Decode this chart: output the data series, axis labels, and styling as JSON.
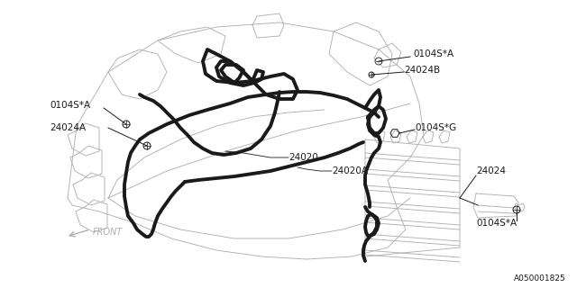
{
  "bg_color": "#ffffff",
  "line_color": "#1a1a1a",
  "light_line_color": "#b0b0b0",
  "title_bottom": "A050001825",
  "labels": {
    "0104S_A_topleft": "0104S*A",
    "24024A": "24024A",
    "0104S_A_topright": "0104S*A",
    "24024B": "24024B",
    "0104S_G": "0104S*G",
    "24020": "24020",
    "24020A": "24020A",
    "24024": "24024",
    "0104S_A_bottomright": "0104S*A",
    "front": "FRONT"
  },
  "figsize": [
    6.4,
    3.2
  ],
  "dpi": 100,
  "xlim": [
    0,
    640
  ],
  "ylim": [
    0,
    320
  ]
}
